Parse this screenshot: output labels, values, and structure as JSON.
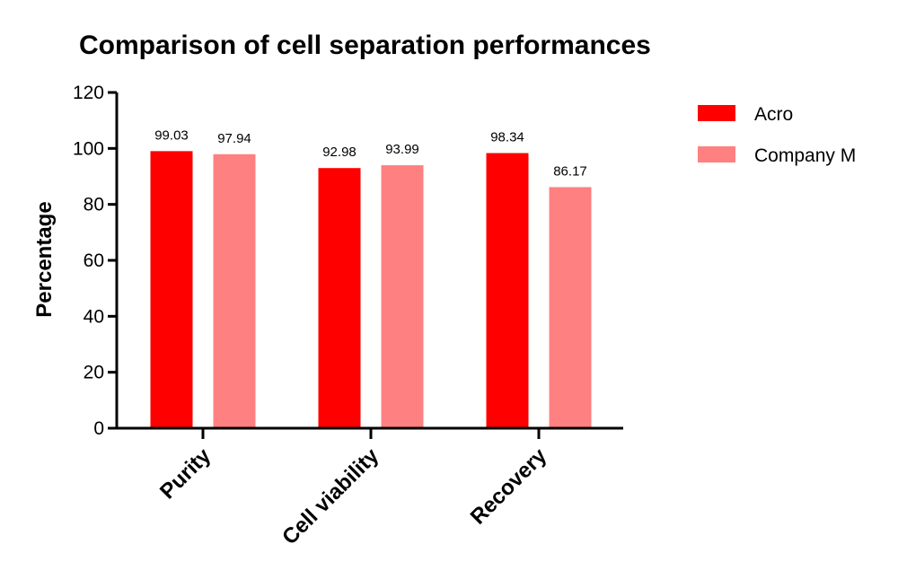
{
  "chart_data": {
    "type": "bar",
    "title": "Comparison of cell separation performances",
    "xlabel": "",
    "ylabel": "Percentage",
    "ylim": [
      0,
      120
    ],
    "yticks": [
      0,
      20,
      40,
      60,
      80,
      100,
      120
    ],
    "categories": [
      "Purity",
      "Cell viability",
      "Recovery"
    ],
    "series": [
      {
        "name": "Acro",
        "color": "#ff0000",
        "values": [
          99.03,
          92.98,
          98.34
        ],
        "labels": [
          "99.03",
          "92.98",
          "98.34"
        ]
      },
      {
        "name": "Company M",
        "color": "#ff8080",
        "values": [
          97.94,
          93.99,
          86.17
        ],
        "labels": [
          "97.94",
          "93.99",
          "86.17"
        ]
      }
    ],
    "grid": false,
    "legend_position": "top-right",
    "data_labels": true
  }
}
